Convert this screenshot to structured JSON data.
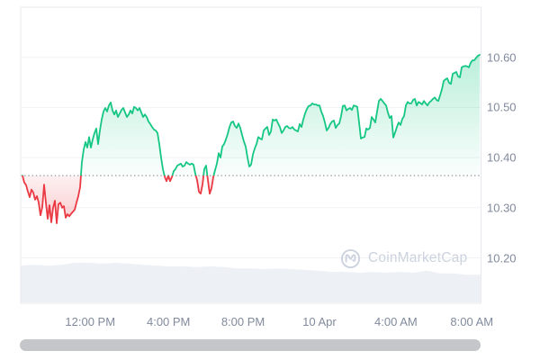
{
  "watermark": {
    "text": "CoinMarketCap"
  },
  "colors": {
    "positive": "#16c784",
    "negative": "#ea3943",
    "axis_label": "#808a9d",
    "gridline": "#f0f2f5",
    "plot_border": "#e7e9ee",
    "baseline_dots": "#94979f",
    "volume_fill": "#edf0f4",
    "watermark": "#ccd2de",
    "scrollbar": "#c4c6c9",
    "background": "#ffffff"
  },
  "chart_data": {
    "type": "line",
    "title": "",
    "legend": "none",
    "grid": "horizontal",
    "baseline_price": 10.364,
    "y_axis": {
      "side": "right",
      "ticks": [
        "10.60",
        "10.50",
        "10.40",
        "10.30",
        "10.20"
      ],
      "tick_values": [
        10.6,
        10.5,
        10.4,
        10.3,
        10.2
      ],
      "range": [
        10.1,
        10.7
      ]
    },
    "x_axis": {
      "ticks": [
        {
          "label": "12:00 PM",
          "t": 0.151
        },
        {
          "label": "4:00 PM",
          "t": 0.321
        },
        {
          "label": "8:00 PM",
          "t": 0.483
        },
        {
          "label": "10 Apr",
          "t": 0.649
        },
        {
          "label": "4:00 AM",
          "t": 0.815
        },
        {
          "label": "8:00 AM",
          "t": 0.98
        }
      ]
    },
    "series": {
      "name": "price",
      "x_span": [
        0.004,
        0.997
      ],
      "prices": [
        10.364,
        10.35,
        10.345,
        10.332,
        10.321,
        10.336,
        10.33,
        10.316,
        10.323,
        10.31,
        10.285,
        10.301,
        10.346,
        10.31,
        10.278,
        10.305,
        10.271,
        10.3,
        10.314,
        10.269,
        10.307,
        10.31,
        10.3,
        10.303,
        10.28,
        10.287,
        10.283,
        10.288,
        10.292,
        10.296,
        10.31,
        10.323,
        10.341,
        10.391,
        10.416,
        10.431,
        10.42,
        10.441,
        10.42,
        10.436,
        10.449,
        10.458,
        10.427,
        10.454,
        10.476,
        10.492,
        10.499,
        10.492,
        10.504,
        10.51,
        10.494,
        10.486,
        10.494,
        10.481,
        10.488,
        10.495,
        10.499,
        10.49,
        10.481,
        10.486,
        10.494,
        10.488,
        10.501,
        10.499,
        10.494,
        10.499,
        10.49,
        10.481,
        10.486,
        10.481,
        10.472,
        10.467,
        10.461,
        10.456,
        10.454,
        10.449,
        10.427,
        10.4,
        10.377,
        10.362,
        10.353,
        10.364,
        10.353,
        10.361,
        10.373,
        10.377,
        10.384,
        10.386,
        10.388,
        10.382,
        10.384,
        10.391,
        10.388,
        10.386,
        10.388,
        10.386,
        10.368,
        10.355,
        10.332,
        10.328,
        10.346,
        10.377,
        10.384,
        10.355,
        10.328,
        10.339,
        10.361,
        10.375,
        10.388,
        10.409,
        10.4,
        10.422,
        10.427,
        10.436,
        10.447,
        10.461,
        10.47,
        10.472,
        10.463,
        10.459,
        10.468,
        10.459,
        10.445,
        10.432,
        10.422,
        10.4,
        10.382,
        10.386,
        10.406,
        10.418,
        10.427,
        10.441,
        10.438,
        10.436,
        10.454,
        10.458,
        10.461,
        10.445,
        10.452,
        10.476,
        10.474,
        10.476,
        10.468,
        10.461,
        10.449,
        10.454,
        10.461,
        10.463,
        10.459,
        10.458,
        10.461,
        10.456,
        10.454,
        10.452,
        10.467,
        10.461,
        10.476,
        10.488,
        10.497,
        10.503,
        10.504,
        10.508,
        10.506,
        10.506,
        10.504,
        10.504,
        10.492,
        10.483,
        10.47,
        10.454,
        10.459,
        10.467,
        10.472,
        10.474,
        10.459,
        10.465,
        10.468,
        10.483,
        10.503,
        10.504,
        10.494,
        10.497,
        10.499,
        10.495,
        10.504,
        10.503,
        10.501,
        10.47,
        10.438,
        10.44,
        10.441,
        10.458,
        10.456,
        10.459,
        10.481,
        10.476,
        10.47,
        10.492,
        10.513,
        10.517,
        10.513,
        10.508,
        10.504,
        10.49,
        10.479,
        10.483,
        10.44,
        10.45,
        10.461,
        10.47,
        10.465,
        10.477,
        10.483,
        10.504,
        10.511,
        10.508,
        10.508,
        10.515,
        10.517,
        10.504,
        10.511,
        10.509,
        10.506,
        10.513,
        10.508,
        10.504,
        10.51,
        10.513,
        10.517,
        10.52,
        10.515,
        10.513,
        10.524,
        10.536,
        10.553,
        10.556,
        10.558,
        10.549,
        10.547,
        10.567,
        10.569,
        10.571,
        10.562,
        10.56,
        10.58,
        10.582,
        10.583,
        10.582,
        10.58,
        10.589,
        10.594,
        10.594,
        10.599,
        10.603,
        10.605
      ]
    },
    "volume": {
      "relative_heights": [
        0.93,
        0.95,
        0.93,
        0.95,
        1.0,
        1.0,
        0.98,
        1.0,
        0.98,
        0.95,
        0.93,
        0.91,
        0.91,
        0.89,
        0.91,
        0.89,
        0.86,
        0.86,
        0.84,
        0.86,
        0.84,
        0.82,
        0.8,
        0.77,
        0.77,
        0.75,
        0.77,
        0.75,
        0.77,
        0.75,
        0.8,
        0.73,
        0.73,
        0.7,
        0.7
      ]
    }
  }
}
